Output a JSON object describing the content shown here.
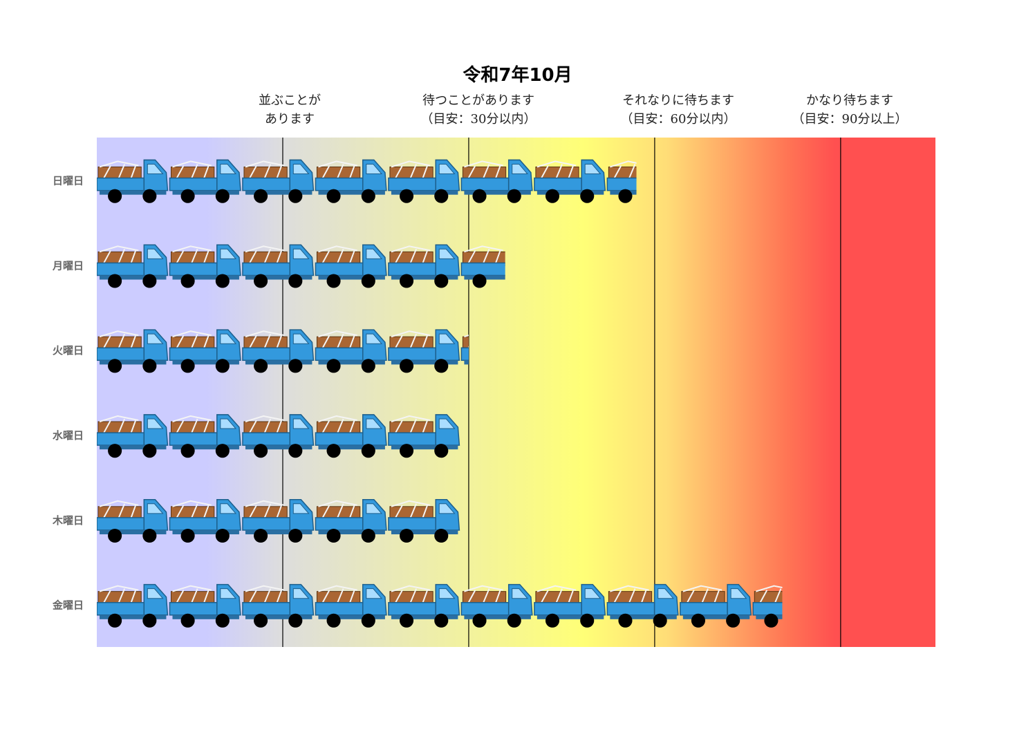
{
  "chart_data": {
    "type": "bar",
    "title": "令和7年10月",
    "categories": [
      "日曜日",
      "月曜日",
      "火曜日",
      "水曜日",
      "木曜日",
      "金曜日"
    ],
    "values": [
      7.4,
      5.6,
      5.1,
      5.0,
      5.0,
      9.4
    ],
    "unit_note": "each truck icon = 1 unit",
    "xlim": [
      0,
      11.5
    ],
    "zone_boundaries": [
      2.55,
      5.1,
      7.65,
      10.2
    ],
    "zones": [
      {
        "line1": "並ぶことが",
        "line2": "あります"
      },
      {
        "line1": "待つことがあります",
        "line2": "（目安：30分以内）"
      },
      {
        "line1": "それなりに待ちます",
        "line2": "（目安：60分以内）"
      },
      {
        "line1": "かなり待ちます",
        "line2": "（目安：90分以上）"
      }
    ],
    "background_gradient": [
      {
        "stop": 0.0,
        "color": "#ccccff"
      },
      {
        "stop": 0.13,
        "color": "#ccccff"
      },
      {
        "stop": 0.22,
        "color": "#dddddd"
      },
      {
        "stop": 0.4,
        "color": "#eeeeaa"
      },
      {
        "stop": 0.58,
        "color": "#ffff77"
      },
      {
        "stop": 0.68,
        "color": "#ffdd77"
      },
      {
        "stop": 0.82,
        "color": "#ff7755"
      },
      {
        "stop": 0.88,
        "color": "#ff5050"
      },
      {
        "stop": 1.0,
        "color": "#ff5050"
      }
    ],
    "colors": {
      "truck_body": "#3399dd",
      "truck_window": "#aaddff",
      "truck_cargo": "#aa6633",
      "wheel": "#000000",
      "gridline": "#000000"
    },
    "grid": false,
    "legend": "none"
  }
}
